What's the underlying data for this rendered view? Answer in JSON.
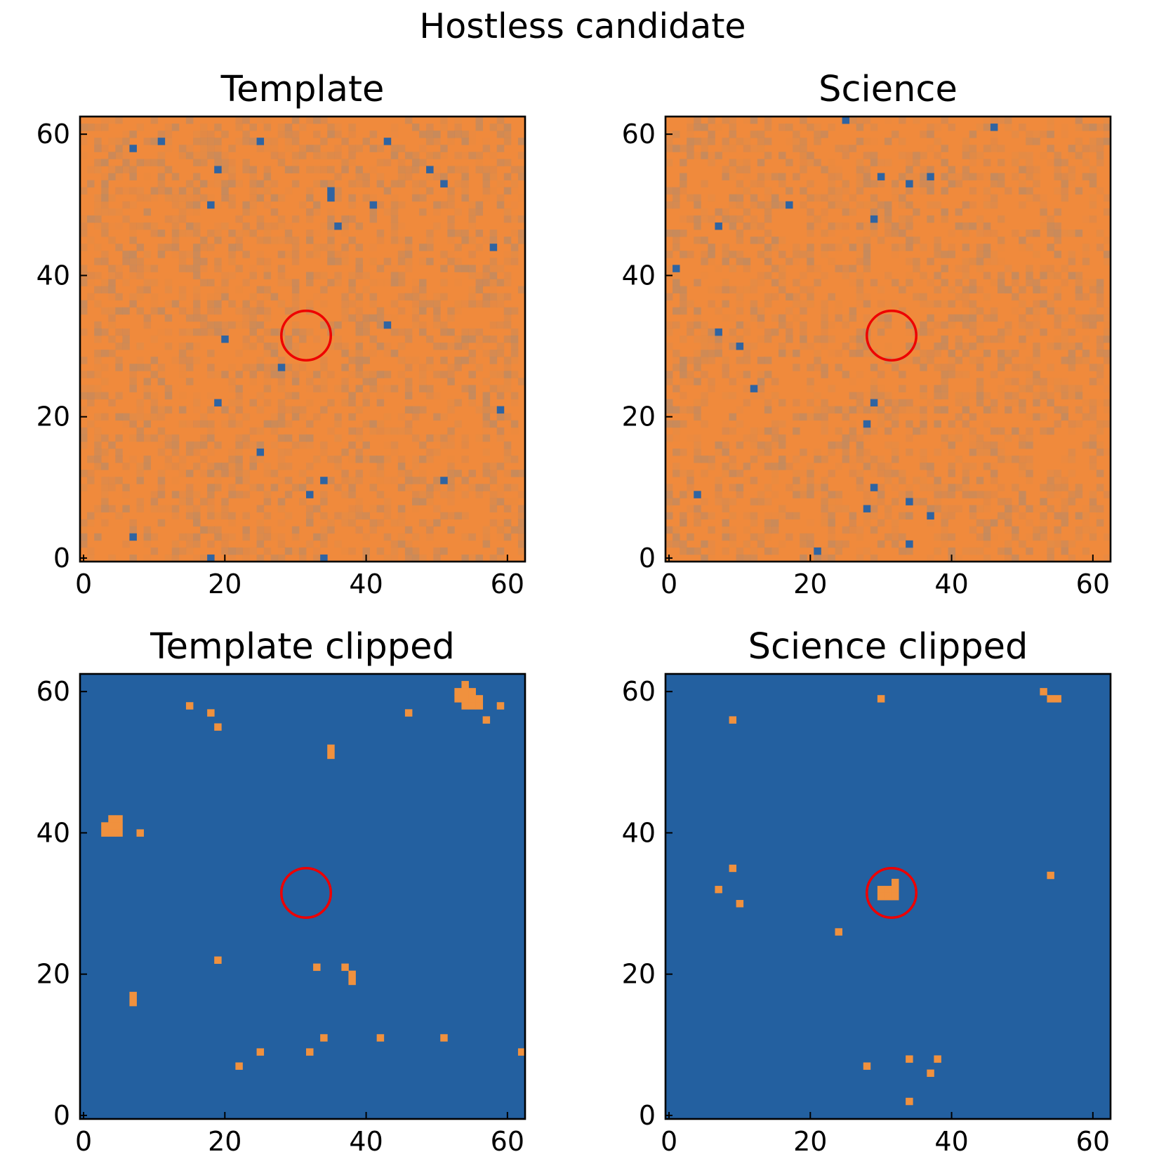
{
  "figure": {
    "title": "Hostless candidate"
  },
  "colors": {
    "background": "#f08a3c",
    "background_alt": "#df8c4a",
    "noise": "#b58a6a",
    "low_pixel": "#2f64a2",
    "clipped_background": "#2360a0",
    "clipped_pixel": "#f0913e",
    "marker": "#ee0000"
  },
  "chart_data": [
    {
      "type": "heatmap",
      "title": "Template",
      "image_size": 63,
      "xlim": [
        -0.5,
        62.5
      ],
      "ylim": [
        -0.5,
        62.5
      ],
      "xticks": [
        0,
        20,
        40,
        60
      ],
      "yticks": [
        0,
        20,
        40,
        60
      ],
      "xtick_labels": [
        "0",
        "20",
        "40",
        "60"
      ],
      "ytick_labels": [
        "0",
        "20",
        "40",
        "60"
      ],
      "origin": "lower",
      "style": "noisy",
      "marker": {
        "shape": "circle",
        "x": 31.5,
        "y": 31.5,
        "radius": 3.5
      },
      "highlight_pixels": [
        [
          7,
          58
        ],
        [
          11,
          59
        ],
        [
          19,
          55
        ],
        [
          18,
          50
        ],
        [
          25,
          59
        ],
        [
          35,
          52
        ],
        [
          35,
          51
        ],
        [
          36,
          47
        ],
        [
          41,
          50
        ],
        [
          43,
          59
        ],
        [
          49,
          55
        ],
        [
          51,
          53
        ],
        [
          58,
          44
        ],
        [
          20,
          31
        ],
        [
          28,
          27
        ],
        [
          43,
          33
        ],
        [
          19,
          22
        ],
        [
          25,
          15
        ],
        [
          34,
          11
        ],
        [
          32,
          9
        ],
        [
          51,
          11
        ],
        [
          59,
          21
        ],
        [
          7,
          3
        ],
        [
          18,
          0
        ],
        [
          34,
          0
        ]
      ]
    },
    {
      "type": "heatmap",
      "title": "Science",
      "image_size": 63,
      "xlim": [
        -0.5,
        62.5
      ],
      "ylim": [
        -0.5,
        62.5
      ],
      "xticks": [
        0,
        20,
        40,
        60
      ],
      "yticks": [
        0,
        20,
        40,
        60
      ],
      "xtick_labels": [
        "0",
        "20",
        "40",
        "60"
      ],
      "ytick_labels": [
        "0",
        "20",
        "40",
        "60"
      ],
      "origin": "lower",
      "style": "noisy",
      "marker": {
        "shape": "circle",
        "x": 31.5,
        "y": 31.5,
        "radius": 3.5
      },
      "highlight_pixels": [
        [
          25,
          62
        ],
        [
          46,
          61
        ],
        [
          30,
          54
        ],
        [
          34,
          53
        ],
        [
          37,
          54
        ],
        [
          17,
          50
        ],
        [
          7,
          47
        ],
        [
          29,
          48
        ],
        [
          1,
          41
        ],
        [
          7,
          32
        ],
        [
          10,
          30
        ],
        [
          12,
          24
        ],
        [
          29,
          22
        ],
        [
          28,
          19
        ],
        [
          4,
          9
        ],
        [
          29,
          10
        ],
        [
          28,
          7
        ],
        [
          34,
          8
        ],
        [
          37,
          6
        ],
        [
          21,
          1
        ],
        [
          34,
          2
        ]
      ]
    },
    {
      "type": "heatmap",
      "title": "Template clipped",
      "image_size": 63,
      "xlim": [
        -0.5,
        62.5
      ],
      "ylim": [
        -0.5,
        62.5
      ],
      "xticks": [
        0,
        20,
        40,
        60
      ],
      "yticks": [
        0,
        20,
        40,
        60
      ],
      "xtick_labels": [
        "0",
        "20",
        "40",
        "60"
      ],
      "ytick_labels": [
        "0",
        "20",
        "40",
        "60"
      ],
      "origin": "lower",
      "style": "binary",
      "marker": {
        "shape": "circle",
        "x": 31.5,
        "y": 31.5,
        "radius": 3.5
      },
      "highlight_pixels": [
        [
          15,
          58
        ],
        [
          18,
          57
        ],
        [
          19,
          55
        ],
        [
          35,
          52
        ],
        [
          35,
          51
        ],
        [
          46,
          57
        ],
        [
          54,
          61
        ],
        [
          53,
          60
        ],
        [
          54,
          60
        ],
        [
          55,
          60
        ],
        [
          53,
          59
        ],
        [
          54,
          59
        ],
        [
          55,
          59
        ],
        [
          56,
          59
        ],
        [
          54,
          58
        ],
        [
          55,
          58
        ],
        [
          56,
          58
        ],
        [
          57,
          56
        ],
        [
          59,
          58
        ],
        [
          4,
          42
        ],
        [
          5,
          42
        ],
        [
          3,
          41
        ],
        [
          4,
          41
        ],
        [
          5,
          41
        ],
        [
          3,
          40
        ],
        [
          4,
          40
        ],
        [
          5,
          40
        ],
        [
          8,
          40
        ],
        [
          19,
          22
        ],
        [
          33,
          21
        ],
        [
          37,
          21
        ],
        [
          38,
          20
        ],
        [
          38,
          19
        ],
        [
          7,
          17
        ],
        [
          7,
          16
        ],
        [
          22,
          7
        ],
        [
          25,
          9
        ],
        [
          32,
          9
        ],
        [
          34,
          11
        ],
        [
          42,
          11
        ],
        [
          51,
          11
        ],
        [
          62,
          9
        ]
      ]
    },
    {
      "type": "heatmap",
      "title": "Science clipped",
      "image_size": 63,
      "xlim": [
        -0.5,
        62.5
      ],
      "ylim": [
        -0.5,
        62.5
      ],
      "xticks": [
        0,
        20,
        40,
        60
      ],
      "yticks": [
        0,
        20,
        40,
        60
      ],
      "xtick_labels": [
        "0",
        "20",
        "40",
        "60"
      ],
      "ytick_labels": [
        "0",
        "20",
        "40",
        "60"
      ],
      "origin": "lower",
      "style": "binary",
      "marker": {
        "shape": "circle",
        "x": 31.5,
        "y": 31.5,
        "radius": 3.5
      },
      "highlight_pixels": [
        [
          30,
          59
        ],
        [
          9,
          56
        ],
        [
          53,
          60
        ],
        [
          54,
          59
        ],
        [
          55,
          59
        ],
        [
          9,
          35
        ],
        [
          7,
          32
        ],
        [
          10,
          30
        ],
        [
          24,
          26
        ],
        [
          54,
          34
        ],
        [
          32,
          33
        ],
        [
          30,
          32
        ],
        [
          31,
          32
        ],
        [
          32,
          32
        ],
        [
          30,
          31
        ],
        [
          31,
          31
        ],
        [
          32,
          31
        ],
        [
          28,
          7
        ],
        [
          34,
          8
        ],
        [
          37,
          6
        ],
        [
          38,
          8
        ],
        [
          34,
          2
        ]
      ]
    }
  ]
}
